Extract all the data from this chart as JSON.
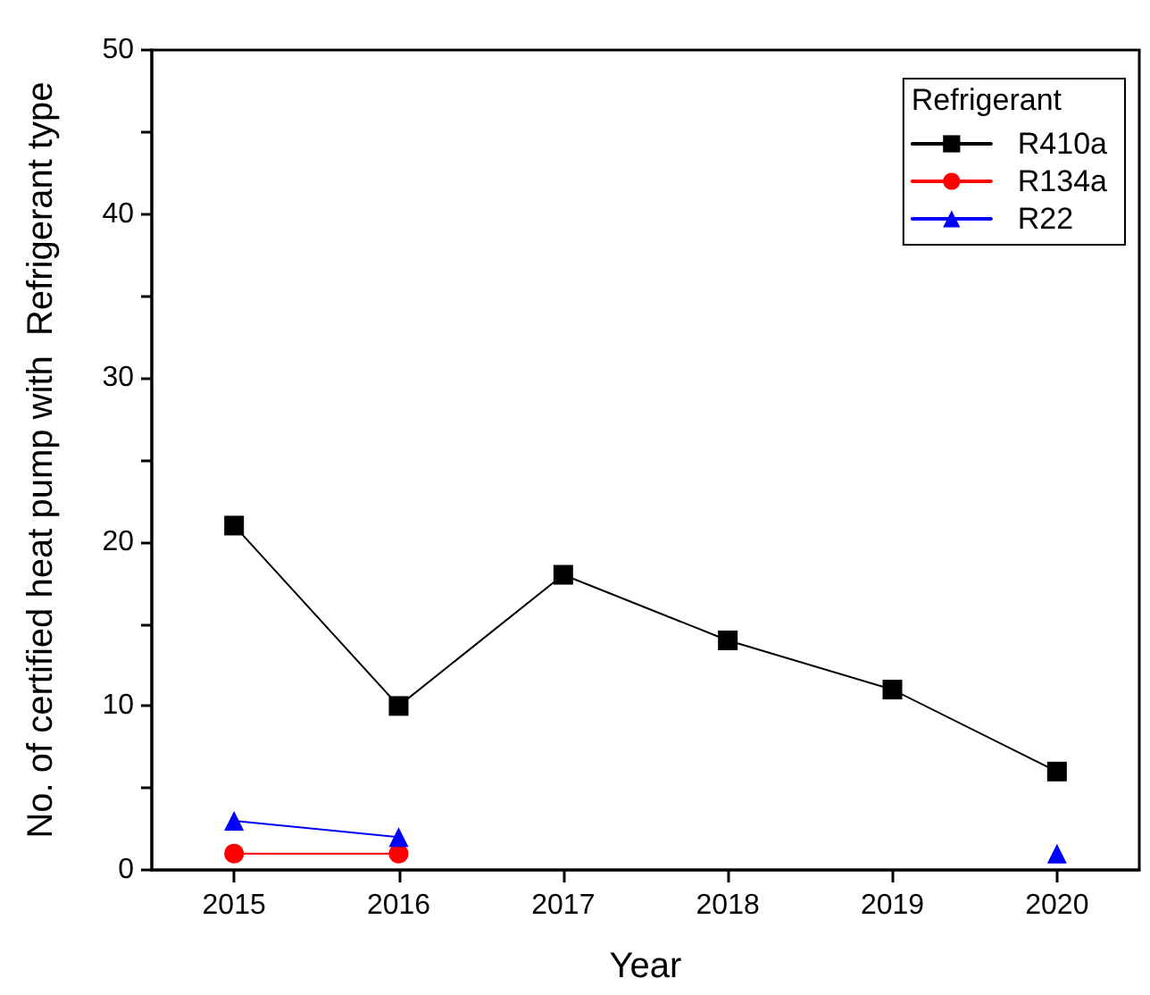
{
  "chart_data": {
    "type": "line",
    "xlabel": "Year",
    "ylabel": "No. of certified heat pump with  Refrigerant type",
    "legend_title": "Refrigerant",
    "legend": "top right",
    "grid": false,
    "x": [
      2015,
      2016,
      2017,
      2018,
      2019,
      2020
    ],
    "xlim": [
      2014.5,
      2020.5
    ],
    "xticks": [
      2015,
      2016,
      2017,
      2018,
      2019,
      2020
    ],
    "ylim": [
      0,
      50
    ],
    "yticks": [
      0,
      {
        "value": 5,
        "label": null
      },
      10,
      {
        "value": 15,
        "label": null
      },
      20,
      {
        "value": 25,
        "label": null
      },
      30,
      {
        "value": 35,
        "label": null
      },
      40,
      {
        "value": 45,
        "label": null
      },
      50
    ],
    "series": [
      {
        "name": "R410a",
        "color": "#000000",
        "marker": "square",
        "values": [
          21,
          10,
          18,
          14,
          11,
          6
        ]
      },
      {
        "name": "R134a",
        "color": "#ff0000",
        "marker": "circle",
        "values": [
          1,
          1,
          null,
          null,
          null,
          null
        ]
      },
      {
        "name": "R22",
        "color": "#0000ff",
        "marker": "triangle",
        "values": [
          3,
          2,
          null,
          null,
          null,
          1
        ]
      }
    ]
  }
}
